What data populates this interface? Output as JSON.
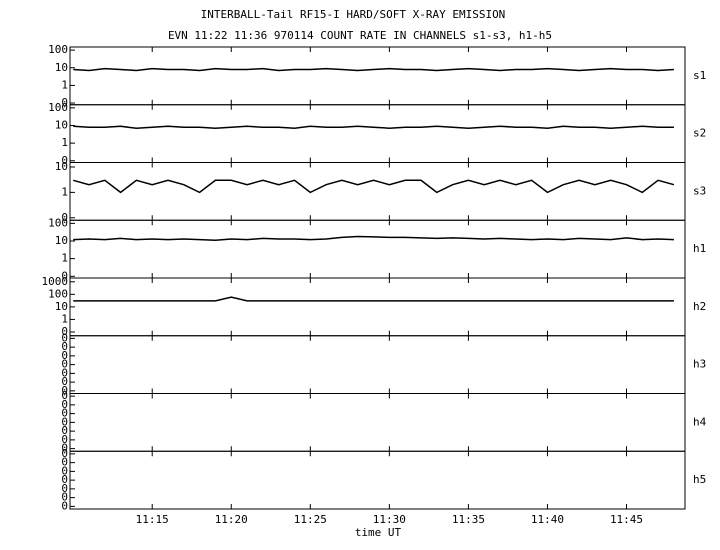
{
  "chart_data": {
    "type": "line",
    "title": "INTERBALL-Tail RF15-I HARD/SOFT X-RAY EMISSION",
    "subtitle": "EVN 11:22 11:36 970114  COUNT RATE IN CHANNELS s1-s3, h1-h5",
    "xlabel": "time UT",
    "color": "#000000",
    "log_scale": true,
    "xlim": [
      9.8,
      48.7
    ],
    "xticks": [
      {
        "value": 15,
        "label": "11:15"
      },
      {
        "value": 20,
        "label": "11:20"
      },
      {
        "value": 25,
        "label": "11:25"
      },
      {
        "value": 30,
        "label": "11:30"
      },
      {
        "value": 35,
        "label": "11:35"
      },
      {
        "value": 40,
        "label": "11:40"
      },
      {
        "value": 45,
        "label": "11:45"
      }
    ],
    "x": [
      10,
      11,
      12,
      13,
      14,
      15,
      16,
      17,
      18,
      19,
      20,
      21,
      22,
      23,
      24,
      25,
      26,
      27,
      28,
      29,
      30,
      31,
      32,
      33,
      34,
      35,
      36,
      37,
      38,
      39,
      40,
      41,
      42,
      43,
      44,
      45,
      46,
      47,
      48
    ],
    "panels": [
      {
        "name": "s1",
        "ylim": [
          0.08,
          150
        ],
        "yticks": [
          100,
          10,
          1,
          {
            "value": 0.1,
            "label": "0"
          }
        ],
        "values": [
          8,
          7,
          9,
          8,
          7,
          9,
          8,
          8,
          7,
          9,
          8,
          8,
          9,
          7,
          8,
          8,
          9,
          8,
          7,
          8,
          9,
          8,
          8,
          7,
          8,
          9,
          8,
          7,
          8,
          8,
          9,
          8,
          7,
          8,
          9,
          8,
          8,
          7,
          8
        ]
      },
      {
        "name": "s2",
        "ylim": [
          0.08,
          150
        ],
        "yticks": [
          100,
          10,
          1,
          {
            "value": 0.1,
            "label": "0"
          }
        ],
        "values": [
          9,
          8,
          8,
          9,
          7,
          8,
          9,
          8,
          8,
          7,
          8,
          9,
          8,
          8,
          7,
          9,
          8,
          8,
          9,
          8,
          7,
          8,
          8,
          9,
          8,
          7,
          8,
          9,
          8,
          8,
          7,
          9,
          8,
          8,
          7,
          8,
          9,
          8,
          8
        ]
      },
      {
        "name": "s3",
        "ylim": [
          0.08,
          15
        ],
        "yticks": [
          10,
          1,
          {
            "value": 0.1,
            "label": "0"
          }
        ],
        "values": [
          3,
          2,
          3,
          1,
          3,
          2,
          3,
          2,
          1,
          3,
          3,
          2,
          3,
          2,
          3,
          1,
          2,
          3,
          2,
          3,
          2,
          3,
          3,
          1,
          2,
          3,
          2,
          3,
          2,
          3,
          1,
          2,
          3,
          2,
          3,
          2,
          1,
          3,
          2
        ]
      },
      {
        "name": "h1",
        "ylim": [
          0.08,
          150
        ],
        "yticks": [
          100,
          10,
          1,
          {
            "value": 0.1,
            "label": "0"
          }
        ],
        "values": [
          12,
          13,
          12,
          14,
          12,
          13,
          12,
          13,
          12,
          11,
          13,
          12,
          14,
          13,
          13,
          12,
          13,
          16,
          18,
          17,
          16,
          16,
          15,
          14,
          15,
          14,
          13,
          14,
          13,
          12,
          13,
          12,
          14,
          13,
          12,
          15,
          12,
          13,
          12
        ]
      },
      {
        "name": "h2",
        "ylim": [
          0.05,
          2000
        ],
        "yticks": [
          1000,
          100,
          10,
          1,
          {
            "value": 0.1,
            "label": "0"
          }
        ],
        "values": [
          30,
          30,
          30,
          30,
          30,
          30,
          30,
          30,
          30,
          30,
          60,
          30,
          30,
          30,
          30,
          30,
          30,
          30,
          30,
          30,
          30,
          30,
          30,
          30,
          30,
          30,
          30,
          30,
          30,
          30,
          30,
          30,
          30,
          30,
          30,
          30,
          30,
          30,
          30
        ]
      },
      {
        "name": "h3",
        "ylim": [
          5e-08,
          0.2
        ],
        "yticks": [
          {
            "value": 1e-07,
            "label": "0"
          },
          {
            "value": 1e-06,
            "label": "0"
          },
          {
            "value": 1e-05,
            "label": "0"
          },
          {
            "value": 0.0001,
            "label": "0"
          },
          {
            "value": 0.001,
            "label": "0"
          },
          {
            "value": 0.01,
            "label": "0"
          },
          {
            "value": 0.1,
            "label": "0"
          }
        ]
      },
      {
        "name": "h4",
        "ylim": [
          5e-08,
          0.2
        ],
        "yticks": [
          {
            "value": 1e-07,
            "label": "0"
          },
          {
            "value": 1e-06,
            "label": "0"
          },
          {
            "value": 1e-05,
            "label": "0"
          },
          {
            "value": 0.0001,
            "label": "0"
          },
          {
            "value": 0.001,
            "label": "0"
          },
          {
            "value": 0.01,
            "label": "0"
          },
          {
            "value": 0.1,
            "label": "0"
          }
        ]
      },
      {
        "name": "h5",
        "ylim": [
          5e-08,
          0.2
        ],
        "yticks": [
          {
            "value": 1e-07,
            "label": "0"
          },
          {
            "value": 1e-06,
            "label": "0"
          },
          {
            "value": 1e-05,
            "label": "0"
          },
          {
            "value": 0.0001,
            "label": "0"
          },
          {
            "value": 0.001,
            "label": "0"
          },
          {
            "value": 0.01,
            "label": "0"
          },
          {
            "value": 0.1,
            "label": "0"
          }
        ]
      }
    ]
  }
}
